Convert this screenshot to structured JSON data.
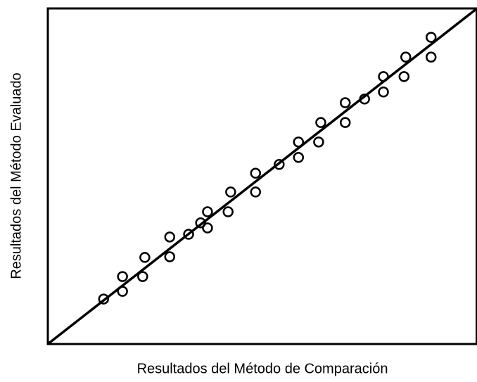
{
  "chart_data": {
    "type": "scatter",
    "x_label": "Resultados del Método de Comparación",
    "y_label": "Resultados del Método Evaluado",
    "xlim": [
      0,
      100
    ],
    "ylim": [
      0,
      100
    ],
    "color": "#000000",
    "x": [
      13.0,
      17.4,
      17.4,
      22.1,
      22.6,
      28.4,
      28.4,
      32.8,
      35.6,
      37.2,
      37.2,
      42.0,
      42.6,
      48.4,
      48.4,
      53.9,
      58.4,
      58.4,
      63.1,
      63.6,
      69.3,
      69.3,
      73.8,
      78.2,
      78.2,
      83.0,
      83.4,
      89.3,
      89.3
    ],
    "values": [
      13.4,
      15.7,
      20.1,
      20.1,
      25.8,
      26.0,
      31.9,
      32.7,
      36.1,
      34.6,
      39.4,
      39.4,
      45.3,
      45.3,
      50.9,
      53.5,
      55.6,
      60.2,
      60.2,
      66.0,
      66.0,
      71.9,
      73.0,
      75.1,
      79.7,
      79.7,
      85.5,
      85.5,
      91.4
    ],
    "line": {
      "x": [
        0,
        100
      ],
      "values": [
        0,
        100
      ]
    }
  }
}
